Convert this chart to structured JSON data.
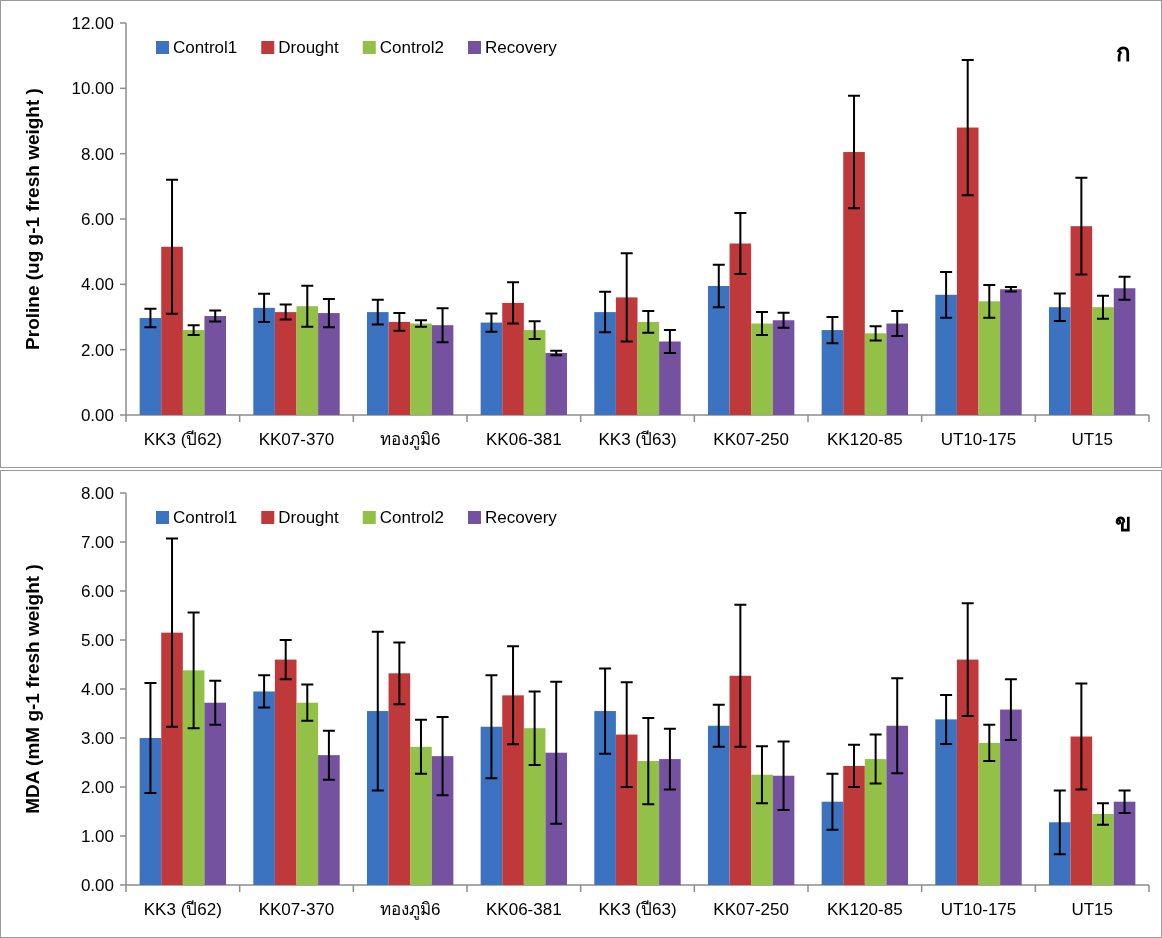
{
  "chart_data": [
    {
      "type": "bar",
      "ylabel": "Proline (ug g-1 fresh weight )",
      "categories": [
        "KK3 (ปี62)",
        "KK07-370",
        "ทองภูมิ6",
        "KK06-381",
        "KK3 (ปี63)",
        "KK07-250",
        "KK120-85",
        "UT10-175",
        "UT15"
      ],
      "series": [
        {
          "name": "Control1",
          "color": "#3b73c0",
          "values": [
            2.97,
            3.28,
            3.15,
            2.83,
            3.15,
            3.95,
            2.6,
            3.68,
            3.3
          ],
          "errors": [
            0.28,
            0.43,
            0.38,
            0.28,
            0.62,
            0.65,
            0.4,
            0.7,
            0.42
          ]
        },
        {
          "name": "Drought",
          "color": "#c0393a",
          "values": [
            5.15,
            3.15,
            2.85,
            3.43,
            3.6,
            5.25,
            8.05,
            8.8,
            5.78
          ],
          "errors": [
            2.05,
            0.23,
            0.27,
            0.63,
            1.35,
            0.93,
            1.72,
            2.07,
            1.48
          ]
        },
        {
          "name": "Control2",
          "color": "#93c047",
          "values": [
            2.6,
            3.33,
            2.8,
            2.6,
            2.85,
            2.8,
            2.5,
            3.48,
            3.3
          ],
          "errors": [
            0.15,
            0.63,
            0.1,
            0.27,
            0.33,
            0.35,
            0.22,
            0.5,
            0.35
          ]
        },
        {
          "name": "Recovery",
          "color": "#7452a0",
          "values": [
            3.03,
            3.12,
            2.75,
            1.9,
            2.25,
            2.9,
            2.8,
            3.85,
            3.88
          ],
          "errors": [
            0.17,
            0.43,
            0.52,
            0.07,
            0.35,
            0.23,
            0.38,
            0.07,
            0.35
          ]
        }
      ],
      "ylim": [
        0,
        12
      ],
      "yticks": [
        {
          "value": 0,
          "label": "0.00"
        },
        {
          "value": 2,
          "label": "2.00"
        },
        {
          "value": 4,
          "label": "4.00"
        },
        {
          "value": 6,
          "label": "6.00"
        },
        {
          "value": 8,
          "label": "8.00"
        },
        {
          "value": 10,
          "label": "10.00"
        },
        {
          "value": 12,
          "label": "12.00"
        }
      ],
      "legend": "top",
      "annotations": [
        "ก"
      ]
    },
    {
      "type": "bar",
      "ylabel": "MDA (mM g-1 fresh weight )",
      "categories": [
        "KK3 (ปี62)",
        "KK07-370",
        "ทองภูมิ6",
        "KK06-381",
        "KK3 (ปี63)",
        "KK07-250",
        "KK120-85",
        "UT10-175",
        "UT15"
      ],
      "series": [
        {
          "name": "Control1",
          "color": "#3b73c0",
          "values": [
            3.0,
            3.95,
            3.55,
            3.23,
            3.55,
            3.25,
            1.7,
            3.38,
            1.28
          ],
          "errors": [
            1.12,
            0.33,
            1.62,
            1.05,
            0.87,
            0.43,
            0.57,
            0.5,
            0.65
          ]
        },
        {
          "name": "Drought",
          "color": "#c0393a",
          "values": [
            5.15,
            4.6,
            4.32,
            3.87,
            3.07,
            4.27,
            2.43,
            4.6,
            3.03
          ],
          "errors": [
            1.92,
            0.4,
            0.63,
            1.0,
            1.07,
            1.45,
            0.43,
            1.15,
            1.08
          ]
        },
        {
          "name": "Control2",
          "color": "#93c047",
          "values": [
            4.38,
            3.72,
            2.82,
            3.2,
            2.53,
            2.25,
            2.57,
            2.9,
            1.45
          ],
          "errors": [
            1.18,
            0.37,
            0.55,
            0.75,
            0.88,
            0.58,
            0.5,
            0.37,
            0.22
          ]
        },
        {
          "name": "Recovery",
          "color": "#7452a0",
          "values": [
            3.72,
            2.65,
            2.63,
            2.7,
            2.57,
            2.23,
            3.25,
            3.58,
            1.7
          ],
          "errors": [
            0.45,
            0.5,
            0.8,
            1.45,
            0.62,
            0.7,
            0.97,
            0.62,
            0.23
          ]
        }
      ],
      "ylim": [
        0,
        8
      ],
      "yticks": [
        {
          "value": 0,
          "label": "0.00"
        },
        {
          "value": 1,
          "label": "1.00"
        },
        {
          "value": 2,
          "label": "2.00"
        },
        {
          "value": 3,
          "label": "3.00"
        },
        {
          "value": 4,
          "label": "4.00"
        },
        {
          "value": 5,
          "label": "5.00"
        },
        {
          "value": 6,
          "label": "6.00"
        },
        {
          "value": 7,
          "label": "7.00"
        },
        {
          "value": 8,
          "label": "8.00"
        }
      ],
      "legend": "top",
      "annotations": [
        "ข"
      ]
    }
  ]
}
